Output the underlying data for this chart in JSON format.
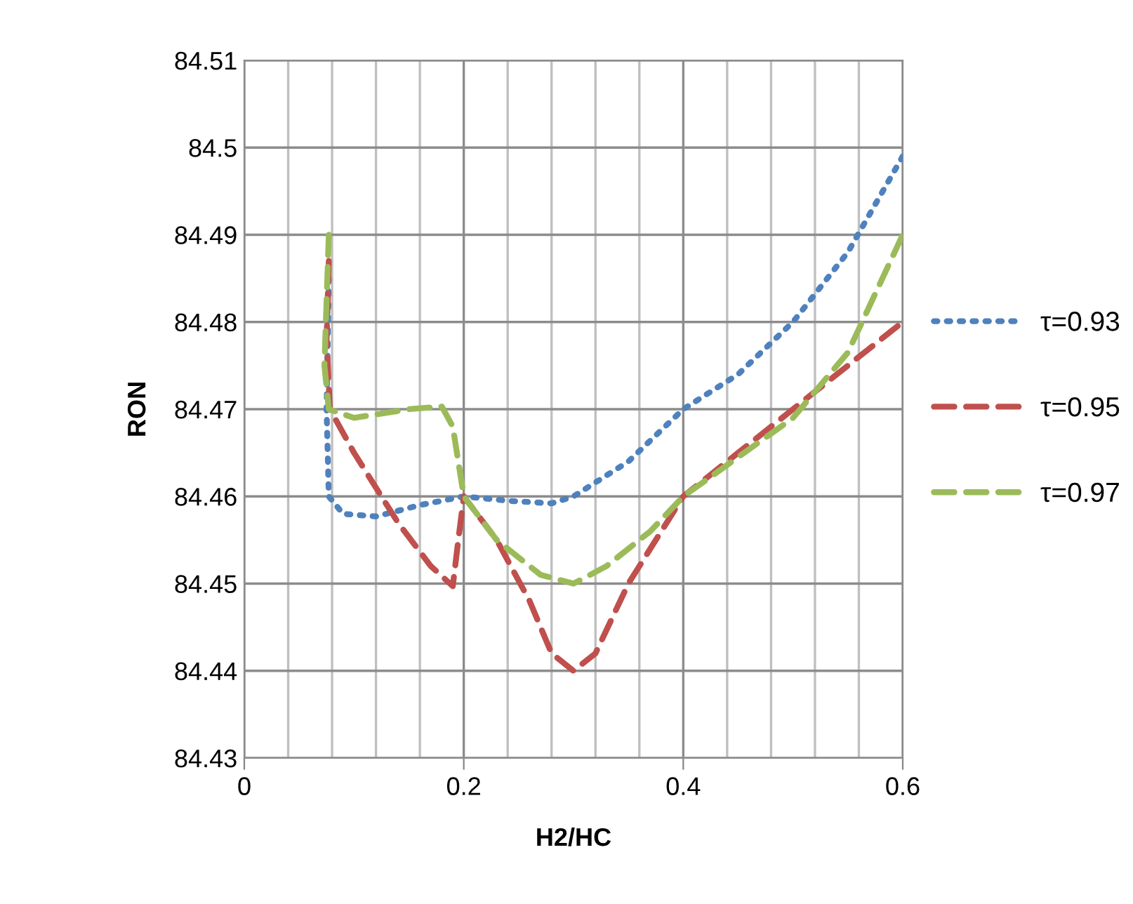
{
  "chart_data": {
    "type": "line",
    "xlabel": "H2/HC",
    "ylabel": "RON",
    "xlim": [
      0,
      0.6
    ],
    "ylim": [
      84.43,
      84.51
    ],
    "xticks": [
      0,
      {
        "value": 0.04,
        "label": null
      },
      {
        "value": 0.08,
        "label": null
      },
      {
        "value": 0.12,
        "label": null
      },
      {
        "value": 0.16,
        "label": null
      },
      0.2,
      {
        "value": 0.24,
        "label": null
      },
      {
        "value": 0.28,
        "label": null
      },
      {
        "value": 0.32,
        "label": null
      },
      {
        "value": 0.36,
        "label": null
      },
      0.4,
      {
        "value": 0.44,
        "label": null
      },
      {
        "value": 0.48,
        "label": null
      },
      {
        "value": 0.52,
        "label": null
      },
      {
        "value": 0.56,
        "label": null
      },
      0.6
    ],
    "yticks": [
      84.43,
      84.44,
      84.45,
      84.46,
      84.47,
      84.48,
      84.49,
      84.5,
      84.51
    ],
    "grid": true,
    "legend": "right",
    "marker": "none",
    "series": [
      {
        "name": "τ=0.93",
        "color": "#4f81bd",
        "line_style": "dotted",
        "x": [
          0.077,
          0.075,
          0.077,
          0.09,
          0.12,
          0.16,
          0.2,
          0.24,
          0.28,
          0.3,
          0.35,
          0.4,
          0.45,
          0.5,
          0.55,
          0.6
        ],
        "values": [
          84.485,
          84.47,
          84.46,
          84.458,
          84.4577,
          84.459,
          84.46,
          84.4595,
          84.4592,
          84.46,
          84.464,
          84.47,
          84.474,
          84.48,
          84.488,
          84.499
        ]
      },
      {
        "name": "τ=0.95",
        "color": "#c0504d",
        "line_style": "dashed",
        "x": [
          0.077,
          0.075,
          0.078,
          0.1,
          0.14,
          0.17,
          0.19,
          0.195,
          0.2,
          0.23,
          0.26,
          0.28,
          0.3,
          0.32,
          0.35,
          0.4,
          0.45,
          0.5,
          0.55,
          0.6
        ],
        "values": [
          84.487,
          84.478,
          84.47,
          84.465,
          84.457,
          84.452,
          84.4497,
          84.455,
          84.46,
          84.455,
          84.448,
          84.442,
          84.44,
          84.442,
          84.45,
          84.46,
          84.465,
          84.47,
          84.475,
          84.48
        ]
      },
      {
        "name": "τ=0.97",
        "color": "#9bbb59",
        "line_style": "dashed",
        "x": [
          0.077,
          0.073,
          0.077,
          0.1,
          0.15,
          0.18,
          0.19,
          0.2,
          0.23,
          0.27,
          0.3,
          0.33,
          0.37,
          0.4,
          0.45,
          0.5,
          0.55,
          0.6
        ],
        "values": [
          84.49,
          84.475,
          84.47,
          84.469,
          84.47,
          84.4703,
          84.468,
          84.46,
          84.455,
          84.451,
          84.45,
          84.452,
          84.456,
          84.46,
          84.4645,
          84.469,
          84.4765,
          84.49
        ]
      }
    ]
  }
}
